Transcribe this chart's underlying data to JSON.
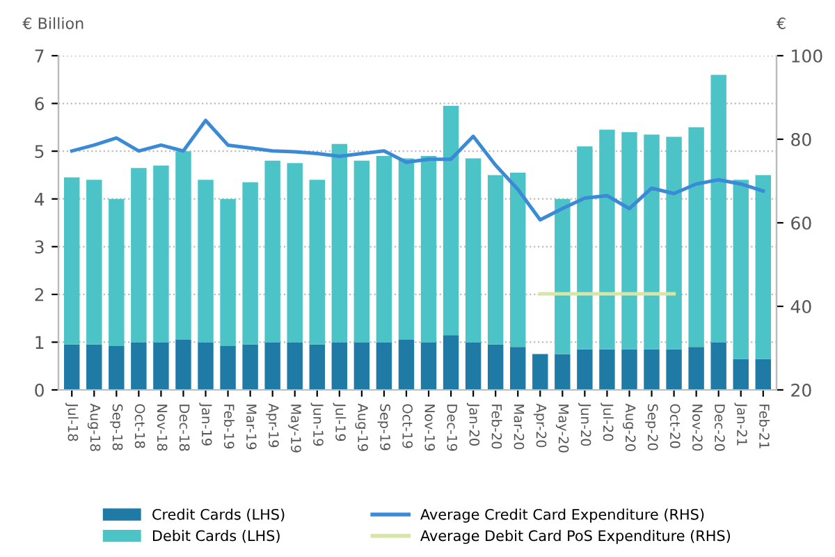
{
  "chart_data": {
    "type": "bar",
    "stacked": true,
    "ylabel": "€ Billion",
    "y2label": "€",
    "categories": [
      "Jul-18",
      "Aug-18",
      "Sep-18",
      "Oct-18",
      "Nov-18",
      "Dec-18",
      "Jan-19",
      "Feb-19",
      "Mar-19",
      "Apr-19",
      "May-19",
      "Jun-19",
      "Jul-19",
      "Aug-19",
      "Sep-19",
      "Oct-19",
      "Nov-19",
      "Dec-19",
      "Jan-20",
      "Feb-20",
      "Mar-20",
      "Apr-20",
      "May-20",
      "Jun-20",
      "Jul-20",
      "Aug-20",
      "Sep-20",
      "Oct-20",
      "Nov-20",
      "Dec-20",
      "Jan-21",
      "Feb-21"
    ],
    "series": [
      {
        "name": "Credit Cards (LHS)",
        "color": "#1f7aa6",
        "values": [
          0.95,
          0.95,
          0.92,
          1.0,
          1.0,
          1.05,
          1.0,
          0.92,
          0.95,
          1.0,
          1.0,
          0.95,
          1.0,
          1.0,
          1.0,
          1.05,
          1.0,
          1.15,
          1.0,
          0.95,
          0.9,
          0.75,
          0.75,
          0.85,
          0.85,
          0.85,
          0.85,
          0.85,
          0.9,
          1.0,
          0.65,
          0.65
        ]
      },
      {
        "name": "Debit Cards (LHS)",
        "color": "#4cc3c6",
        "values": [
          3.5,
          3.45,
          3.08,
          3.65,
          3.7,
          3.95,
          3.4,
          3.08,
          3.4,
          3.8,
          3.75,
          3.45,
          4.15,
          3.8,
          3.9,
          3.8,
          3.9,
          4.8,
          3.85,
          3.55,
          3.65,
          null,
          3.25,
          4.25,
          4.6,
          4.55,
          4.5,
          4.45,
          4.6,
          5.6,
          3.75,
          3.85
        ]
      },
      {
        "name": "Average Credit Card Expenditure (RHS)",
        "type": "line",
        "axis": "y2",
        "color": "#3a8ad6",
        "values": [
          77.2,
          78.6,
          80.3,
          77.2,
          78.6,
          77.2,
          84.5,
          78.6,
          77.9,
          77.2,
          77,
          76.6,
          75.9,
          76.6,
          77.2,
          74.5,
          75.2,
          75.2,
          80.7,
          73.8,
          68,
          60.7,
          63.4,
          65.9,
          66.5,
          63.4,
          68.3,
          67,
          69.3,
          70.3,
          69.3,
          67.6
        ]
      },
      {
        "name": "Average Debit Card PoS Expenditure (RHS)",
        "type": "line",
        "axis": "y2",
        "color": "#d6e6a6",
        "values": [
          null,
          null,
          null,
          null,
          null,
          null,
          null,
          null,
          null,
          null,
          null,
          null,
          null,
          null,
          null,
          null,
          null,
          null,
          null,
          null,
          null,
          43,
          43,
          43,
          43,
          43,
          43,
          43,
          null,
          null,
          null,
          null
        ]
      }
    ],
    "ylim": [
      0,
      7
    ],
    "yticks": [
      0,
      1,
      2,
      3,
      4,
      5,
      6,
      7
    ],
    "y2lim": [
      20,
      100
    ],
    "y2ticks": [
      20,
      40,
      60,
      80,
      100
    ],
    "grid": "y",
    "legend": "bottom"
  }
}
